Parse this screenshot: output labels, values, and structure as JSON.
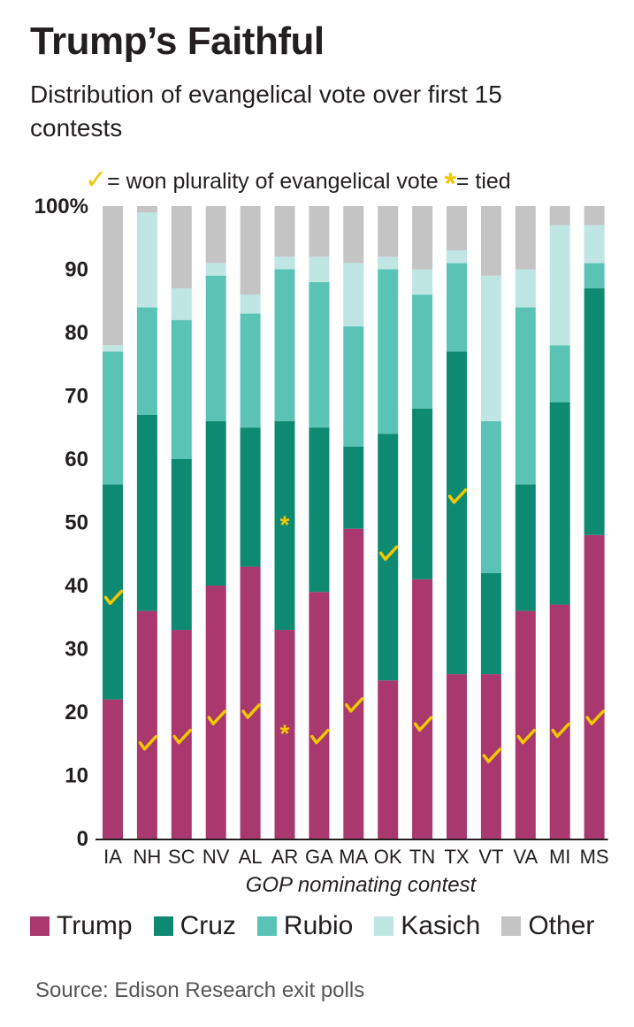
{
  "title": "Trump’s Faithful",
  "subtitle": "Distribution of evangelical vote over first 15 contests",
  "key": {
    "won_mark": "✓",
    "won_label": "= won plurality of evangelical vote",
    "tied_mark": "*",
    "tied_label": "= tied"
  },
  "source": "Source: Edison Research exit polls",
  "colors": {
    "Trump": "#a8386e",
    "Cruz": "#0e8a72",
    "Rubio": "#5bc3b6",
    "Kasich": "#bfe6e3",
    "Other": "#c4c4c4",
    "mark": "#f2c800"
  },
  "chart_data": {
    "type": "bar",
    "stacked": true,
    "title": "Trump’s Faithful",
    "xlabel": "GOP nominating contest",
    "ylabel": "",
    "ylim": [
      0,
      100
    ],
    "yticks": [
      0,
      10,
      20,
      30,
      40,
      50,
      60,
      70,
      80,
      90,
      100
    ],
    "ytick_labels": [
      "0",
      "10",
      "20",
      "30",
      "40",
      "50",
      "60",
      "70",
      "80",
      "90",
      "100%"
    ],
    "categories": [
      "IA",
      "NH",
      "SC",
      "NV",
      "AL",
      "AR",
      "GA",
      "MA",
      "OK",
      "TN",
      "TX",
      "VT",
      "VA",
      "MI",
      "MS"
    ],
    "series": [
      {
        "name": "Trump",
        "values": [
          22,
          36,
          33,
          40,
          43,
          33,
          39,
          49,
          25,
          41,
          26,
          26,
          36,
          37,
          48
        ]
      },
      {
        "name": "Cruz",
        "values": [
          34,
          31,
          27,
          26,
          22,
          33,
          26,
          13,
          39,
          27,
          51,
          16,
          20,
          32,
          39
        ]
      },
      {
        "name": "Rubio",
        "values": [
          21,
          17,
          22,
          23,
          18,
          24,
          23,
          19,
          26,
          18,
          14,
          24,
          28,
          9,
          4
        ]
      },
      {
        "name": "Kasich",
        "values": [
          1,
          15,
          5,
          2,
          3,
          2,
          4,
          10,
          2,
          4,
          2,
          23,
          6,
          19,
          6
        ]
      },
      {
        "name": "Other",
        "values": [
          22,
          1,
          13,
          9,
          14,
          8,
          8,
          9,
          8,
          10,
          7,
          11,
          10,
          3,
          3
        ]
      }
    ],
    "markers": [
      {
        "category": "IA",
        "series": "Cruz",
        "type": "won",
        "value": 38
      },
      {
        "category": "NH",
        "series": "Trump",
        "type": "won",
        "value": 15
      },
      {
        "category": "SC",
        "series": "Trump",
        "type": "won",
        "value": 16
      },
      {
        "category": "NV",
        "series": "Trump",
        "type": "won",
        "value": 19
      },
      {
        "category": "AL",
        "series": "Trump",
        "type": "won",
        "value": 20
      },
      {
        "category": "AR",
        "series": "Cruz",
        "type": "tied",
        "value": 50
      },
      {
        "category": "AR",
        "series": "Trump",
        "type": "tied",
        "value": 17
      },
      {
        "category": "GA",
        "series": "Trump",
        "type": "won",
        "value": 16
      },
      {
        "category": "MA",
        "series": "Trump",
        "type": "won",
        "value": 21
      },
      {
        "category": "OK",
        "series": "Cruz",
        "type": "won",
        "value": 45
      },
      {
        "category": "TN",
        "series": "Trump",
        "type": "won",
        "value": 18
      },
      {
        "category": "TX",
        "series": "Cruz",
        "type": "won",
        "value": 54
      },
      {
        "category": "VT",
        "series": "Trump",
        "type": "won",
        "value": 13
      },
      {
        "category": "VA",
        "series": "Trump",
        "type": "won",
        "value": 16
      },
      {
        "category": "MI",
        "series": "Trump",
        "type": "won",
        "value": 17
      },
      {
        "category": "MS",
        "series": "Trump",
        "type": "won",
        "value": 19
      }
    ],
    "legend": [
      "Trump",
      "Cruz",
      "Rubio",
      "Kasich",
      "Other"
    ],
    "legend_position": "bottom"
  }
}
